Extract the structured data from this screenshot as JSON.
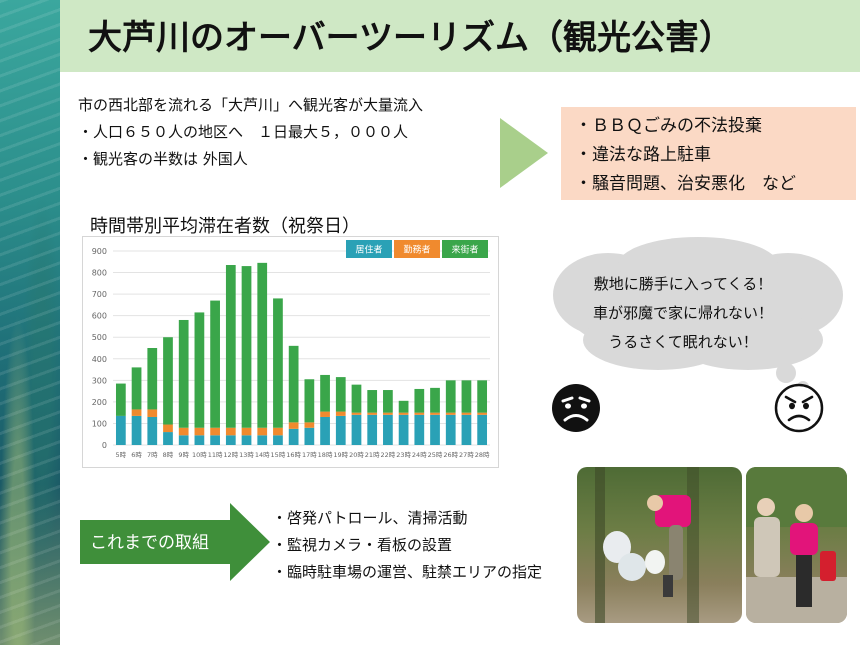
{
  "title": "大芦川のオーバーツーリズム（観光公害）",
  "intro": {
    "line1": "市の西北部を流れる「大芦川」へ観光客が大量流入",
    "bullet1": "・人口６５０人の地区へ　１日最大５，０００人",
    "bullet2": "・観光客の半数は 外国人"
  },
  "problems": [
    "・ＢＢＱごみの不法投棄",
    "・違法な路上駐車",
    "・騒音問題、治安悪化　など"
  ],
  "complaints": [
    "敷地に勝手に入ってくる！",
    "車が邪魔で家に帰れない！",
    "うるさくて眠れない！"
  ],
  "efforts": {
    "label": "これまでの取組",
    "items": [
      "・啓発パトロール、清掃活動",
      "・監視カメラ・看板の設置",
      "・臨時駐車場の運営、駐禁エリアの指定"
    ]
  },
  "colors": {
    "resident": "#2aa1b6",
    "commuter": "#f08a2e",
    "visitor": "#3aa64a",
    "title_bg": "#cfe8c5",
    "problem_bg": "#fbd9c5",
    "arrow_light": "#a9cf8b",
    "arrow_dark": "#3f8f3a"
  },
  "icons": [
    "sad-face-icon",
    "angry-face-icon"
  ],
  "chart_data": {
    "type": "bar",
    "stacked": true,
    "title": "時間帯別平均滞在者数（祝祭日）",
    "categories": [
      "5時",
      "6時",
      "7時",
      "8時",
      "9時",
      "10時",
      "11時",
      "12時",
      "13時",
      "14時",
      "15時",
      "16時",
      "17時",
      "18時",
      "19時",
      "20時",
      "21時",
      "22時",
      "23時",
      "24時",
      "25時",
      "26時",
      "27時",
      "28時"
    ],
    "series": [
      {
        "name": "居住者",
        "color": "#2aa1b6",
        "values": [
          135,
          135,
          130,
          60,
          45,
          45,
          45,
          45,
          45,
          45,
          45,
          75,
          80,
          130,
          135,
          140,
          140,
          140,
          140,
          140,
          140,
          140,
          140,
          140
        ]
      },
      {
        "name": "勤務者",
        "color": "#f08a2e",
        "values": [
          0,
          30,
          35,
          35,
          35,
          35,
          35,
          35,
          35,
          35,
          35,
          30,
          25,
          25,
          20,
          10,
          10,
          10,
          10,
          10,
          10,
          10,
          10,
          10
        ]
      },
      {
        "name": "来街者",
        "color": "#3aa64a",
        "values": [
          150,
          195,
          285,
          405,
          500,
          535,
          590,
          755,
          750,
          765,
          600,
          355,
          200,
          170,
          160,
          130,
          105,
          105,
          55,
          110,
          115,
          150,
          150,
          150
        ]
      }
    ],
    "ylim": [
      0,
      900
    ],
    "yticks": [
      0,
      100,
      200,
      300,
      400,
      500,
      600,
      700,
      800,
      900
    ],
    "grid": true,
    "legend": "top-right"
  }
}
